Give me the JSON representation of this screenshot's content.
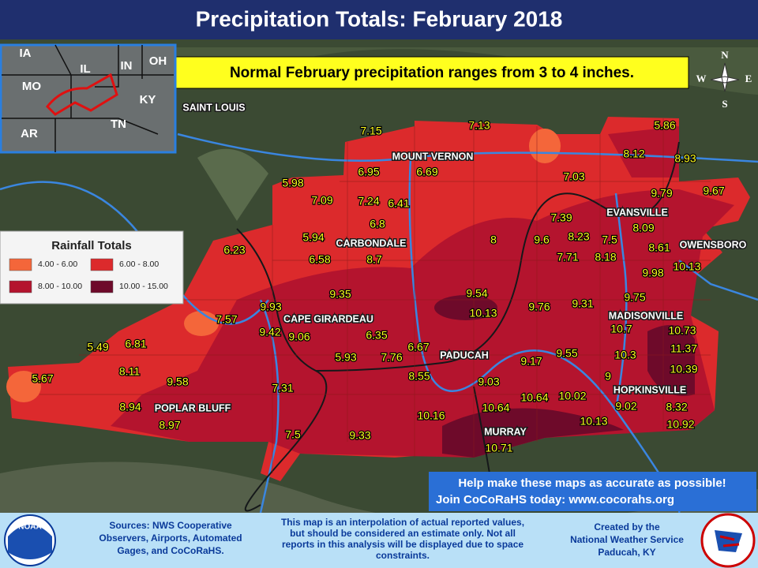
{
  "title": "Precipitation Totals: February 2018",
  "banner": "Normal February precipitation ranges from 3 to 4 inches.",
  "legend": {
    "title": "Rainfall Totals",
    "items": [
      {
        "label": "4.00 - 6.00",
        "color": "#f4663a"
      },
      {
        "label": "6.00 - 8.00",
        "color": "#dc2a2c"
      },
      {
        "label": "8.00 - 10.00",
        "color": "#b4142e"
      },
      {
        "label": "10.00 - 15.00",
        "color": "#6e0a2a"
      }
    ]
  },
  "inset": {
    "states": [
      "IA",
      "IL",
      "IN",
      "OH",
      "MO",
      "KY",
      "AR",
      "TN"
    ]
  },
  "compass": [
    "N",
    "E",
    "S",
    "W"
  ],
  "cities": [
    "SAINT LOUIS",
    "MOUNT VERNON",
    "EVANSVILLE",
    "OWENSBORO",
    "CARBONDALE",
    "CAPE GIRARDEAU",
    "PADUCAH",
    "MADISONVILLE",
    "HOPKINSVILLE",
    "POPLAR BLUFF",
    "MURRAY"
  ],
  "totals": [
    7.15,
    7.13,
    5.86,
    8.12,
    8.93,
    6.95,
    6.69,
    7.03,
    5.98,
    7.09,
    7.24,
    6.41,
    9.79,
    9.67,
    7.39,
    6.8,
    8.09,
    8.23,
    7.5,
    5.94,
    8,
    9.6,
    8.61,
    6.23,
    6.58,
    8.7,
    7.71,
    8.18,
    10.13,
    9.98,
    9.35,
    9.54,
    9.75,
    9.93,
    10.13,
    9.76,
    9.31,
    7.57,
    9.42,
    9.06,
    10.7,
    10.73,
    6.35,
    6.67,
    11.37,
    5.49,
    6.81,
    10.3,
    5.93,
    7.76,
    9.55,
    9.17,
    10.39,
    8.11,
    8.55,
    9,
    5.67,
    9.58,
    9.03,
    7.31,
    10.64,
    10.02,
    9.02,
    8.32,
    8.94,
    10.64,
    10.16,
    8.97,
    10.13,
    10.92,
    7.5,
    9.33,
    10.71
  ],
  "callout": [
    "Help make these maps as accurate as possible!",
    "Join CoCoRaHS today: www.cocorahs.org"
  ],
  "footer": {
    "noaa": "NOAA",
    "sources": [
      "Sources: NWS Cooperative",
      "Observers, Airports, Automated",
      "Gages, and CoCoRaHS."
    ],
    "disclaimer": [
      "This map is an interpolation of actual reported values,",
      "but should be considered an estimate only. Not all",
      "reports in this analysis will be displayed due to space",
      "constraints."
    ],
    "credit": [
      "Created by the",
      "National Weather Service",
      "Paducah, KY"
    ]
  }
}
